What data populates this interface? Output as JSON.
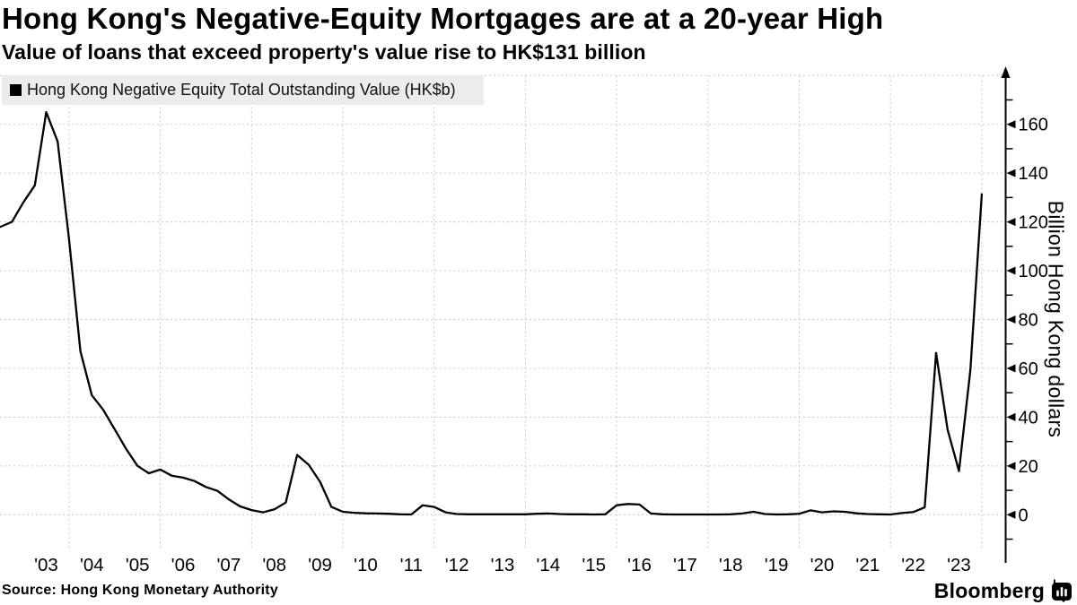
{
  "header": {
    "title": "Hong Kong's Negative-Equity Mortgages are at a 20-year High",
    "subtitle": "Value of loans that exceed property's value rise to HK$131 billion"
  },
  "legend": {
    "label": "Hong Kong Negative Equity Total Outstanding Value (HK$b)"
  },
  "source": {
    "label": "Source: Hong Kong Monetary Authority"
  },
  "branding": {
    "label": "Bloomberg"
  },
  "colors": {
    "line": "#000000",
    "grid": "#c8c8c8",
    "legend_bg": "#ececec",
    "text": "#000000",
    "background": "#ffffff"
  },
  "chart_data": {
    "type": "line",
    "title": "Hong Kong's Negative-Equity Mortgages are at a 20-year High",
    "subtitle": "Value of loans that exceed property's value rise to HK$131 billion",
    "series_name": "Hong Kong Negative Equity Total Outstanding Value (HK$b)",
    "xlabel": "",
    "ylabel": "Billion Hong Kong dollars",
    "unit": "HK$ billion",
    "x_is": "decimal year, quarterly points plotted at quarter end",
    "ylim": [
      -13,
      180
    ],
    "xlim": [
      2002.45,
      2024.5
    ],
    "grid": true,
    "legend_position": "top-left",
    "y_ticks_major": [
      0,
      20,
      40,
      60,
      80,
      100,
      120,
      140,
      160
    ],
    "y_ticks_minor": [
      -10,
      10,
      30,
      50,
      70,
      90,
      110,
      130,
      150,
      170
    ],
    "y_gridlines": [
      0,
      20,
      40,
      60,
      80,
      100,
      120,
      140,
      160,
      180
    ],
    "x_gridline_years": [
      2004,
      2006,
      2008,
      2010,
      2012,
      2014,
      2016,
      2018,
      2020,
      2022,
      2024
    ],
    "x_tick_years": [
      2003,
      2004,
      2005,
      2006,
      2007,
      2008,
      2009,
      2010,
      2011,
      2012,
      2013,
      2014,
      2015,
      2016,
      2017,
      2018,
      2019,
      2020,
      2021,
      2022,
      2023
    ],
    "x_tick_labels": [
      "'03",
      "'04",
      "'05",
      "'06",
      "'07",
      "'08",
      "'09",
      "'10",
      "'11",
      "'12",
      "'13",
      "'14",
      "'15",
      "'16",
      "'17",
      "'18",
      "'19",
      "'20",
      "'21",
      "'22",
      "'23"
    ],
    "points": [
      [
        2002.5,
        118
      ],
      [
        2002.75,
        120
      ],
      [
        2003.0,
        128
      ],
      [
        2003.25,
        135
      ],
      [
        2003.5,
        165
      ],
      [
        2003.75,
        153
      ],
      [
        2004.0,
        113
      ],
      [
        2004.25,
        67
      ],
      [
        2004.5,
        49
      ],
      [
        2004.75,
        43
      ],
      [
        2005.0,
        35
      ],
      [
        2005.25,
        27
      ],
      [
        2005.5,
        20
      ],
      [
        2005.75,
        17
      ],
      [
        2006.0,
        18.5
      ],
      [
        2006.25,
        16
      ],
      [
        2006.5,
        15.2
      ],
      [
        2006.75,
        13.8
      ],
      [
        2007.0,
        11.4
      ],
      [
        2007.25,
        9.8
      ],
      [
        2007.5,
        6.3
      ],
      [
        2007.75,
        3.4
      ],
      [
        2008.0,
        1.9
      ],
      [
        2008.25,
        1.0
      ],
      [
        2008.5,
        2.2
      ],
      [
        2008.75,
        5.0
      ],
      [
        2009.0,
        24.5
      ],
      [
        2009.25,
        20.5
      ],
      [
        2009.5,
        13.5
      ],
      [
        2009.75,
        3.2
      ],
      [
        2010.0,
        1.2
      ],
      [
        2010.25,
        0.8
      ],
      [
        2010.5,
        0.6
      ],
      [
        2010.75,
        0.5
      ],
      [
        2011.0,
        0.4
      ],
      [
        2011.25,
        0.2
      ],
      [
        2011.5,
        0.1
      ],
      [
        2011.75,
        3.9
      ],
      [
        2012.0,
        3.2
      ],
      [
        2012.25,
        1.0
      ],
      [
        2012.5,
        0.3
      ],
      [
        2012.75,
        0.2
      ],
      [
        2013.0,
        0.2
      ],
      [
        2013.25,
        0.2
      ],
      [
        2013.5,
        0.2
      ],
      [
        2013.75,
        0.2
      ],
      [
        2014.0,
        0.2
      ],
      [
        2014.25,
        0.4
      ],
      [
        2014.5,
        0.5
      ],
      [
        2014.75,
        0.3
      ],
      [
        2015.0,
        0.2
      ],
      [
        2015.25,
        0.2
      ],
      [
        2015.5,
        0.1
      ],
      [
        2015.75,
        0.2
      ],
      [
        2016.0,
        3.9
      ],
      [
        2016.25,
        4.4
      ],
      [
        2016.5,
        4.2
      ],
      [
        2016.75,
        0.5
      ],
      [
        2017.0,
        0.2
      ],
      [
        2017.25,
        0.1
      ],
      [
        2017.5,
        0.1
      ],
      [
        2017.75,
        0.1
      ],
      [
        2018.0,
        0.1
      ],
      [
        2018.25,
        0.1
      ],
      [
        2018.5,
        0.2
      ],
      [
        2018.75,
        0.5
      ],
      [
        2019.0,
        1.2
      ],
      [
        2019.25,
        0.3
      ],
      [
        2019.5,
        0.1
      ],
      [
        2019.75,
        0.2
      ],
      [
        2020.0,
        0.4
      ],
      [
        2020.25,
        1.8
      ],
      [
        2020.5,
        1.0
      ],
      [
        2020.75,
        1.4
      ],
      [
        2021.0,
        1.2
      ],
      [
        2021.25,
        0.6
      ],
      [
        2021.5,
        0.3
      ],
      [
        2021.75,
        0.2
      ],
      [
        2022.0,
        0.1
      ],
      [
        2022.25,
        0.7
      ],
      [
        2022.5,
        1.1
      ],
      [
        2022.75,
        3.0
      ],
      [
        2023.0,
        66.3
      ],
      [
        2023.25,
        34.9
      ],
      [
        2023.5,
        17.9
      ],
      [
        2023.75,
        59.3
      ],
      [
        2024.0,
        131.3
      ]
    ]
  }
}
